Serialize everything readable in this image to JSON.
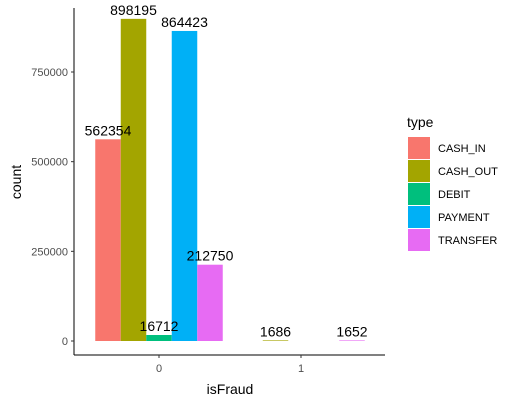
{
  "chart_data": {
    "type": "bar",
    "title": "",
    "xlabel": "isFraud",
    "ylabel": "count",
    "x_categories": [
      "0",
      "1"
    ],
    "y_ticks": [
      0,
      250000,
      500000,
      750000
    ],
    "y_tick_labels": [
      "0",
      "250000",
      "500000",
      "750000"
    ],
    "ylim": [
      0,
      943105
    ],
    "grid": false,
    "legend_placement": "right",
    "legend_title": "type",
    "series": [
      {
        "name": "CASH_IN",
        "color": "#F8766D",
        "values": [
          562354,
          null
        ]
      },
      {
        "name": "CASH_OUT",
        "color": "#A3A500",
        "values": [
          898195,
          1686
        ]
      },
      {
        "name": "DEBIT",
        "color": "#00BF7D",
        "values": [
          16712,
          null
        ]
      },
      {
        "name": "PAYMENT",
        "color": "#00B0F6",
        "values": [
          864423,
          null
        ]
      },
      {
        "name": "TRANSFER",
        "color": "#E76BF3",
        "values": [
          212750,
          1652
        ]
      }
    ],
    "bar_labels": [
      {
        "x": "0",
        "series": "CASH_IN",
        "text": "562354"
      },
      {
        "x": "0",
        "series": "CASH_OUT",
        "text": "898195"
      },
      {
        "x": "0",
        "series": "DEBIT",
        "text": "16712"
      },
      {
        "x": "0",
        "series": "PAYMENT",
        "text": "864423"
      },
      {
        "x": "0",
        "series": "TRANSFER",
        "text": "212750"
      },
      {
        "x": "1",
        "series": "CASH_OUT",
        "text": "1686"
      },
      {
        "x": "1",
        "series": "TRANSFER",
        "text": "1652"
      }
    ]
  }
}
